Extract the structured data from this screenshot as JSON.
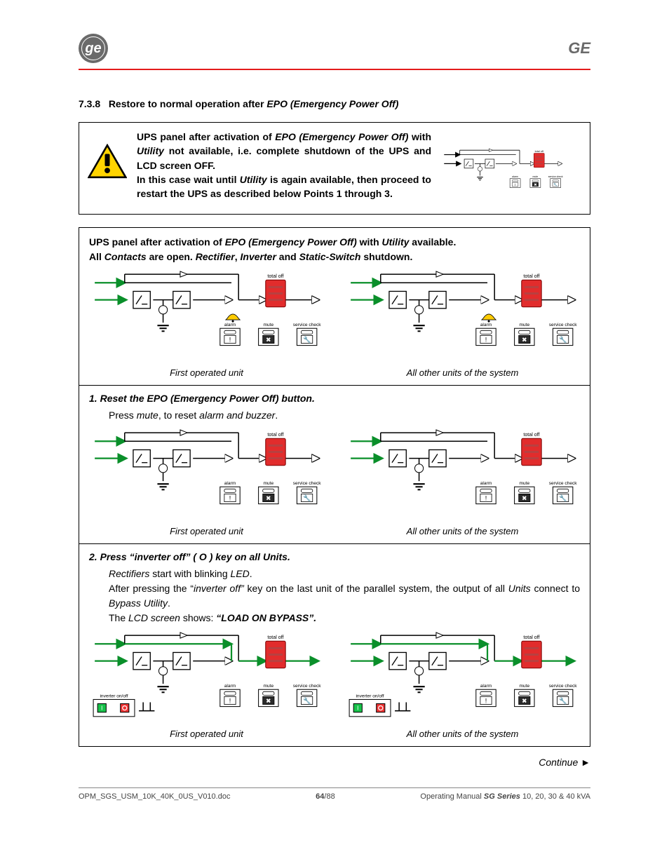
{
  "header": {
    "ge_label": "GE",
    "rule_color": "#e41b1b"
  },
  "section": {
    "number": "7.3.8",
    "title_plain": "Restore to normal operation after ",
    "title_em": "EPO (Emergency Power Off)"
  },
  "warning_box": {
    "text_parts": [
      {
        "t": "UPS panel after activation of ",
        "b": true
      },
      {
        "t": "EPO (Emergency Power Off)",
        "b": true,
        "i": true
      },
      {
        "t": " with ",
        "b": true
      },
      {
        "t": "Utility",
        "b": true,
        "i": true
      },
      {
        "t": " not available, i.e. complete shutdown of the UPS and LCD screen OFF.",
        "b": true
      },
      {
        "br": true
      },
      {
        "t": "In this case wait until ",
        "b": true
      },
      {
        "t": "Utility",
        "b": true,
        "i": true
      },
      {
        "t": " is again available, then proceed to restart the UPS as described below Points 1 through 3.",
        "b": true
      }
    ],
    "warning_colors": {
      "border": "#000000",
      "fill": "#ffd400"
    }
  },
  "diagram_common": {
    "label_total_off": "total off",
    "label_alarm": "alarm",
    "label_mute": "mute",
    "label_service": "service check",
    "label_inverter": "inverter on/off",
    "red_panel": "#e22c2c",
    "green": "#0a8f2a",
    "black": "#000000",
    "dark_btn": "#2b2b2b"
  },
  "main": {
    "intro_parts": [
      {
        "t": "UPS panel after activation of ",
        "b": true
      },
      {
        "t": "EPO (Emergency Power Off)",
        "b": true,
        "i": true
      },
      {
        "t": " with ",
        "b": true
      },
      {
        "t": "Utility",
        "b": true,
        "i": true
      },
      {
        "t": " available",
        "b": true
      },
      {
        "t": ".",
        "b": false
      },
      {
        "br": true
      },
      {
        "t": "All ",
        "b": true
      },
      {
        "t": "Contacts",
        "b": true,
        "i": true
      },
      {
        "t": " are open. ",
        "b": true
      },
      {
        "t": "Rectifier",
        "b": true,
        "i": true
      },
      {
        "t": ", ",
        "b": true
      },
      {
        "t": "Inverter",
        "b": true,
        "i": true
      },
      {
        "t": " and ",
        "b": true
      },
      {
        "t": "Static-Switch",
        "b": true,
        "i": true
      },
      {
        "t": " shutdown.",
        "b": true
      }
    ],
    "caption_first": "First operated unit",
    "caption_other": "All other units of the system",
    "step1": {
      "head_parts": [
        {
          "t": "1.  ",
          "b": true,
          "i": true
        },
        {
          "t": "Reset the EPO (Emergency Power Off) button",
          "b": true,
          "i": true
        },
        {
          "t": ".",
          "b": false
        }
      ],
      "body_parts": [
        {
          "t": "Press "
        },
        {
          "t": "mute",
          "i": true
        },
        {
          "t": ", to reset "
        },
        {
          "t": "alarm and buzzer",
          "i": true
        },
        {
          "t": "."
        }
      ]
    },
    "step2": {
      "head_parts": [
        {
          "t": "2.  ",
          "b": true,
          "i": true
        },
        {
          "t": "Press “inverter off” ( O ) key on all Units",
          "b": true,
          "i": true
        },
        {
          "t": ".",
          "b": false
        }
      ],
      "body_parts": [
        {
          "t": "Rectifiers",
          "i": true
        },
        {
          "t": " start with blinking "
        },
        {
          "t": "LED",
          "i": true
        },
        {
          "t": "."
        },
        {
          "br": true
        },
        {
          "t": "After pressing the “"
        },
        {
          "t": "inverter off”",
          "i": true
        },
        {
          "t": " key on the last unit of the parallel system, the output of all "
        },
        {
          "t": "Units",
          "i": true
        },
        {
          "t": " connect to "
        },
        {
          "t": "Bypass Utility",
          "i": true
        },
        {
          "t": "."
        },
        {
          "br": true
        },
        {
          "t": "The "
        },
        {
          "t": "LCD screen",
          "i": true
        },
        {
          "t": " shows: "
        },
        {
          "t": "“LOAD ON BYPASS”.",
          "b": true,
          "i": true
        }
      ]
    }
  },
  "continue_label": "Continue ►",
  "footer": {
    "left": "OPM_SGS_USM_10K_40K_0US_V010.doc",
    "mid_a": "64",
    "mid_b": "/88",
    "right_a": "Operating Manual ",
    "right_b": "SG Series",
    "right_c": " 10, 20, 30 & 40 kVA"
  }
}
